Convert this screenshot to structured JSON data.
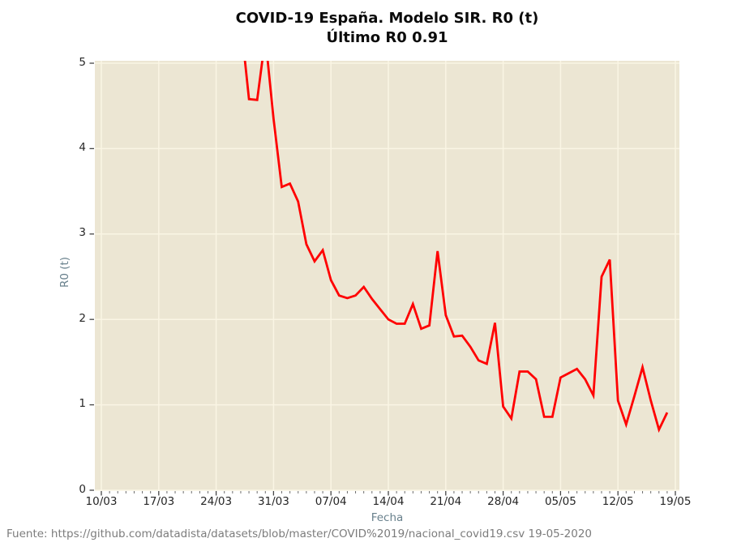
{
  "title": {
    "line1": "COVID-19 España. Modelo SIR. R0 (t)",
    "line2": "Último R0 0.91"
  },
  "footer": {
    "source": "Fuente: https://github.com/datadista/datasets/blob/master/COVID%2019/nacional_covid19.csv 19-05-2020"
  },
  "colors": {
    "line": "#ff0000",
    "plot_background": "#ece6d3",
    "grid": "#faf5e4",
    "axis_title_text": "#69818d",
    "tick_label_text": "#262626",
    "major_tick": "#454545",
    "minor_tick": "#6e6e6e",
    "title_text": "#0b0b0b",
    "footer_text": "#7c7c7c",
    "figure_background": "#ffffff"
  },
  "chart_data": {
    "type": "line",
    "title": "COVID-19 España. Modelo SIR. R0 (t)",
    "subtitle": "Último R0 0.91",
    "last_r0": 0.91,
    "xlabel": "Fecha",
    "ylabel": "R0 (t)",
    "ylim": [
      0,
      5
    ],
    "x_range_days": 70,
    "x_tick_labels": [
      "10/03",
      "17/03",
      "24/03",
      "31/03",
      "07/04",
      "14/04",
      "21/04",
      "28/04",
      "05/05",
      "12/05",
      "19/05"
    ],
    "y_tick_labels": [
      "0",
      "1",
      "2",
      "3",
      "4",
      "5"
    ],
    "grid": true,
    "legend_position": "none",
    "clip_note": "values above 5 are clipped at the top of the plot (27/03 and 30/03 exceed the y range; estimates given)",
    "series": [
      {
        "name": "R0 (t)",
        "color": "#ff0000",
        "dates": [
          "27/03",
          "28/03",
          "29/03",
          "30/03",
          "31/03",
          "01/04",
          "02/04",
          "03/04",
          "04/04",
          "05/04",
          "06/04",
          "07/04",
          "08/04",
          "09/04",
          "10/04",
          "11/04",
          "12/04",
          "13/04",
          "14/04",
          "15/04",
          "16/04",
          "17/04",
          "18/04",
          "19/04",
          "20/04",
          "21/04",
          "22/04",
          "23/04",
          "24/04",
          "25/04",
          "26/04",
          "27/04",
          "28/04",
          "29/04",
          "30/04",
          "01/05",
          "02/05",
          "03/05",
          "04/05",
          "05/05",
          "06/05",
          "07/05",
          "08/05",
          "09/05",
          "10/05",
          "11/05",
          "12/05",
          "13/05",
          "14/05",
          "15/05",
          "16/05",
          "17/05",
          "18/05"
        ],
        "values": [
          5.5,
          4.58,
          4.57,
          5.3,
          4.35,
          3.55,
          3.59,
          3.38,
          2.88,
          2.68,
          2.81,
          2.46,
          2.28,
          2.25,
          2.28,
          2.38,
          2.24,
          2.12,
          2.0,
          1.95,
          1.95,
          2.18,
          1.89,
          1.93,
          2.8,
          2.05,
          1.8,
          1.81,
          1.68,
          1.52,
          1.48,
          1.96,
          0.98,
          0.84,
          1.39,
          1.39,
          1.3,
          0.86,
          0.86,
          1.32,
          1.37,
          1.42,
          1.3,
          1.11,
          2.5,
          2.7,
          1.05,
          0.77,
          1.1,
          1.44,
          1.05,
          0.71,
          0.91
        ]
      }
    ]
  }
}
